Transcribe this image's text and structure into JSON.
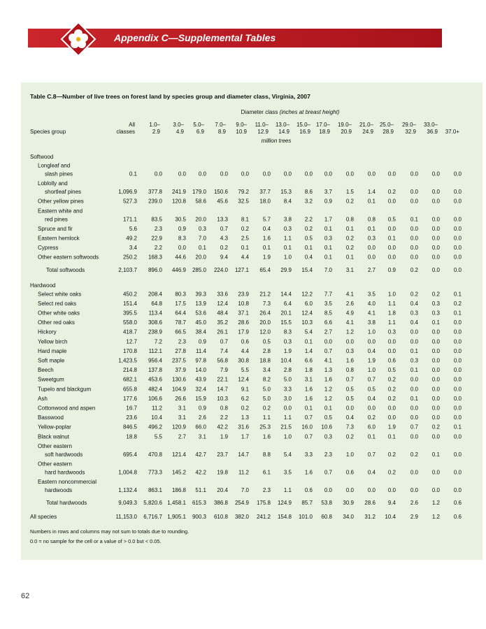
{
  "header": {
    "title": "Appendix C—Supplemental Tables"
  },
  "table": {
    "title": "Table C.8—Number of live trees on forest land by species group and diameter class, Virginia, 2007",
    "column_group": "Diameter class",
    "column_group_note": "(inches at breast height)",
    "stub": "Species group",
    "units": "million trees",
    "columns": [
      [
        "All",
        "classes"
      ],
      [
        "1.0–",
        "2.9"
      ],
      [
        "3.0–",
        "4.9"
      ],
      [
        "5.0–",
        "6.9"
      ],
      [
        "7.0–",
        "8.9"
      ],
      [
        "9.0–",
        "10.9"
      ],
      [
        "11.0–",
        "12.9"
      ],
      [
        "13.0–",
        "14.9"
      ],
      [
        "15.0–",
        "16.9"
      ],
      [
        "17.0–",
        "18.9"
      ],
      [
        "19.0–",
        "20.9"
      ],
      [
        "21.0–",
        "24.9"
      ],
      [
        "25.0–",
        "28.9"
      ],
      [
        "29.0–",
        "32.9"
      ],
      [
        "33.0–",
        "36.9"
      ],
      [
        "37.0+"
      ]
    ],
    "sections": [
      {
        "heading": "Softwood",
        "rows": [
          {
            "label": [
              "Longleaf and",
              "slash pines"
            ],
            "values": [
              "0.1",
              "0.0",
              "0.0",
              "0.0",
              "0.0",
              "0.0",
              "0.0",
              "0.0",
              "0.0",
              "0.0",
              "0.0",
              "0.0",
              "0.0",
              "0.0",
              "0.0",
              "0.0"
            ]
          },
          {
            "label": [
              "Loblolly and",
              "shortleaf pines"
            ],
            "values": [
              "1,096.9",
              "377.8",
              "241.9",
              "179.0",
              "150.6",
              "79.2",
              "37.7",
              "15.3",
              "8.6",
              "3.7",
              "1.5",
              "1.4",
              "0.2",
              "0.0",
              "0.0",
              "0.0"
            ]
          },
          {
            "label": [
              "Other yellow pines"
            ],
            "values": [
              "527.3",
              "239.0",
              "120.8",
              "58.6",
              "45.6",
              "32.5",
              "18.0",
              "8.4",
              "3.2",
              "0.9",
              "0.2",
              "0.1",
              "0.0",
              "0.0",
              "0.0",
              "0.0"
            ]
          },
          {
            "label": [
              "Eastern white and",
              "red pines"
            ],
            "values": [
              "171.1",
              "83.5",
              "30.5",
              "20.0",
              "13.3",
              "8.1",
              "5.7",
              "3.8",
              "2.2",
              "1.7",
              "0.8",
              "0.8",
              "0.5",
              "0.1",
              "0.0",
              "0.0"
            ]
          },
          {
            "label": [
              "Spruce and fir"
            ],
            "values": [
              "5.6",
              "2.3",
              "0.9",
              "0.3",
              "0.7",
              "0.2",
              "0.4",
              "0.3",
              "0.2",
              "0.1",
              "0.1",
              "0.1",
              "0.0",
              "0.0",
              "0.0",
              "0.0"
            ]
          },
          {
            "label": [
              "Eastern hemlock"
            ],
            "values": [
              "49.2",
              "22.9",
              "8.3",
              "7.0",
              "4.3",
              "2.5",
              "1.6",
              "1.1",
              "0.5",
              "0.3",
              "0.2",
              "0.3",
              "0.1",
              "0.0",
              "0.0",
              "0.0"
            ]
          },
          {
            "label": [
              "Cypress"
            ],
            "values": [
              "3.4",
              "2.2",
              "0.0",
              "0.1",
              "0.2",
              "0.1",
              "0.1",
              "0.1",
              "0.1",
              "0.1",
              "0.2",
              "0.0",
              "0.0",
              "0.0",
              "0.0",
              "0.0"
            ]
          },
          {
            "label": [
              "Other eastern softwoods"
            ],
            "values": [
              "250.2",
              "168.3",
              "44.6",
              "20.0",
              "9.4",
              "4.4",
              "1.9",
              "1.0",
              "0.4",
              "0.1",
              "0.1",
              "0.0",
              "0.0",
              "0.0",
              "0.0",
              "0.0"
            ]
          }
        ],
        "total": {
          "label": "Total softwoods",
          "values": [
            "2,103.7",
            "896.0",
            "446.9",
            "285.0",
            "224.0",
            "127.1",
            "65.4",
            "29.9",
            "15.4",
            "7.0",
            "3.1",
            "2.7",
            "0.9",
            "0.2",
            "0.0",
            "0.0"
          ]
        }
      },
      {
        "heading": "Hardwood",
        "rows": [
          {
            "label": [
              "Select white oaks"
            ],
            "values": [
              "450.2",
              "208.4",
              "80.3",
              "39.3",
              "33.6",
              "23.9",
              "21.2",
              "14.4",
              "12.2",
              "7.7",
              "4.1",
              "3.5",
              "1.0",
              "0.2",
              "0.2",
              "0.1"
            ]
          },
          {
            "label": [
              "Select red oaks"
            ],
            "values": [
              "151.4",
              "64.8",
              "17.5",
              "13.9",
              "12.4",
              "10.8",
              "7.3",
              "6.4",
              "6.0",
              "3.5",
              "2.6",
              "4.0",
              "1.1",
              "0.4",
              "0.3",
              "0.2"
            ]
          },
          {
            "label": [
              "Other white oaks"
            ],
            "values": [
              "395.5",
              "113.4",
              "64.4",
              "53.6",
              "48.4",
              "37.1",
              "26.4",
              "20.1",
              "12.4",
              "8.5",
              "4.9",
              "4.1",
              "1.8",
              "0.3",
              "0.3",
              "0.1"
            ]
          },
          {
            "label": [
              "Other red oaks"
            ],
            "values": [
              "558.0",
              "308.6",
              "78.7",
              "45.0",
              "35.2",
              "28.6",
              "20.0",
              "15.5",
              "10.3",
              "6.6",
              "4.1",
              "3.8",
              "1.1",
              "0.4",
              "0.1",
              "0.0"
            ]
          },
          {
            "label": [
              "Hickory"
            ],
            "values": [
              "418.7",
              "238.9",
              "66.5",
              "38.4",
              "26.1",
              "17.9",
              "12.0",
              "8.3",
              "5.4",
              "2.7",
              "1.2",
              "1.0",
              "0.3",
              "0.0",
              "0.0",
              "0.0"
            ]
          },
          {
            "label": [
              "Yellow birch"
            ],
            "values": [
              "12.7",
              "7.2",
              "2.3",
              "0.9",
              "0.7",
              "0.6",
              "0.5",
              "0.3",
              "0.1",
              "0.0",
              "0.0",
              "0.0",
              "0.0",
              "0.0",
              "0.0",
              "0.0"
            ]
          },
          {
            "label": [
              "Hard maple"
            ],
            "values": [
              "170.8",
              "112.1",
              "27.8",
              "11.4",
              "7.4",
              "4.4",
              "2.8",
              "1.9",
              "1.4",
              "0.7",
              "0.3",
              "0.4",
              "0.0",
              "0.1",
              "0.0",
              "0.0"
            ]
          },
          {
            "label": [
              "Soft maple"
            ],
            "values": [
              "1,423.5",
              "956.4",
              "237.5",
              "97.8",
              "56.8",
              "30.8",
              "18.8",
              "10.4",
              "6.6",
              "4.1",
              "1.6",
              "1.9",
              "0.6",
              "0.3",
              "0.0",
              "0.0"
            ]
          },
          {
            "label": [
              "Beech"
            ],
            "values": [
              "214.8",
              "137.8",
              "37.9",
              "14.0",
              "7.9",
              "5.5",
              "3.4",
              "2.8",
              "1.8",
              "1.3",
              "0.8",
              "1.0",
              "0.5",
              "0.1",
              "0.0",
              "0.0"
            ]
          },
          {
            "label": [
              "Sweetgum"
            ],
            "values": [
              "682.1",
              "453.6",
              "130.6",
              "43.9",
              "22.1",
              "12.4",
              "8.2",
              "5.0",
              "3.1",
              "1.6",
              "0.7",
              "0.7",
              "0.2",
              "0.0",
              "0.0",
              "0.0"
            ]
          },
          {
            "label": [
              "Tupelo and blackgum"
            ],
            "values": [
              "655.8",
              "482.4",
              "104.9",
              "32.4",
              "14.7",
              "9.1",
              "5.0",
              "3.3",
              "1.6",
              "1.2",
              "0.5",
              "0.5",
              "0.2",
              "0.0",
              "0.0",
              "0.0"
            ]
          },
          {
            "label": [
              "Ash"
            ],
            "values": [
              "177.6",
              "106.6",
              "26.6",
              "15.9",
              "10.3",
              "6.2",
              "5.0",
              "3.0",
              "1.6",
              "1.2",
              "0.5",
              "0.4",
              "0.2",
              "0.1",
              "0.0",
              "0.0"
            ]
          },
          {
            "label": [
              "Cottonwood and aspen"
            ],
            "values": [
              "16.7",
              "11.2",
              "3.1",
              "0.9",
              "0.8",
              "0.2",
              "0.2",
              "0.0",
              "0.1",
              "0.1",
              "0.0",
              "0.0",
              "0.0",
              "0.0",
              "0.0",
              "0.0"
            ]
          },
          {
            "label": [
              "Basswood"
            ],
            "values": [
              "23.6",
              "10.4",
              "3.1",
              "2.6",
              "2.2",
              "1.3",
              "1.1",
              "1.1",
              "0.7",
              "0.5",
              "0.4",
              "0.2",
              "0.0",
              "0.0",
              "0.0",
              "0.0"
            ]
          },
          {
            "label": [
              "Yellow-poplar"
            ],
            "values": [
              "846.5",
              "496.2",
              "120.9",
              "66.0",
              "42.2",
              "31.6",
              "25.3",
              "21.5",
              "16.0",
              "10.6",
              "7.3",
              "6.0",
              "1.9",
              "0.7",
              "0.2",
              "0.1"
            ]
          },
          {
            "label": [
              "Black walnut"
            ],
            "values": [
              "18.8",
              "5.5",
              "2.7",
              "3.1",
              "1.9",
              "1.7",
              "1.6",
              "1.0",
              "0.7",
              "0.3",
              "0.2",
              "0.1",
              "0.1",
              "0.0",
              "0.0",
              "0.0"
            ]
          },
          {
            "label": [
              "Other eastern",
              "soft hardwoods"
            ],
            "values": [
              "695.4",
              "470.8",
              "121.4",
              "42.7",
              "23.7",
              "14.7",
              "8.8",
              "5.4",
              "3.3",
              "2.3",
              "1.0",
              "0.7",
              "0.2",
              "0.2",
              "0.1",
              "0.0"
            ]
          },
          {
            "label": [
              "Other eastern",
              "hard hardwoods"
            ],
            "values": [
              "1,004.8",
              "773.3",
              "145.2",
              "42.2",
              "19.8",
              "11.2",
              "6.1",
              "3.5",
              "1.6",
              "0.7",
              "0.6",
              "0.4",
              "0.2",
              "0.0",
              "0.0",
              "0.0"
            ]
          },
          {
            "label": [
              "Eastern noncommercial",
              "hardwoods"
            ],
            "values": [
              "1,132.4",
              "863.1",
              "186.8",
              "51.1",
              "20.4",
              "7.0",
              "2.3",
              "1.1",
              "0.6",
              "0.0",
              "0.0",
              "0.0",
              "0.0",
              "0.0",
              "0.0",
              "0.0"
            ]
          }
        ],
        "total": {
          "label": "Total hardwoods",
          "values": [
            "9,049.3",
            "5,820.6",
            "1,458.1",
            "615.3",
            "386.8",
            "254.9",
            "175.8",
            "124.9",
            "85.7",
            "53.8",
            "30.9",
            "28.6",
            "9.4",
            "2.6",
            "1.2",
            "0.6"
          ]
        }
      }
    ],
    "grand_total": {
      "label": "All species",
      "values": [
        "11,153.0",
        "6,716.7",
        "1,905.1",
        "900.3",
        "610.8",
        "382.0",
        "241.2",
        "154.8",
        "101.0",
        "60.8",
        "34.0",
        "31.2",
        "10.4",
        "2.9",
        "1.2",
        "0.6"
      ]
    },
    "notes": [
      "Numbers in rows and columns may not sum to totals due to rounding.",
      "0.0 = no sample for the cell or a value of > 0.0 but < 0.05."
    ]
  },
  "page_number": "62"
}
